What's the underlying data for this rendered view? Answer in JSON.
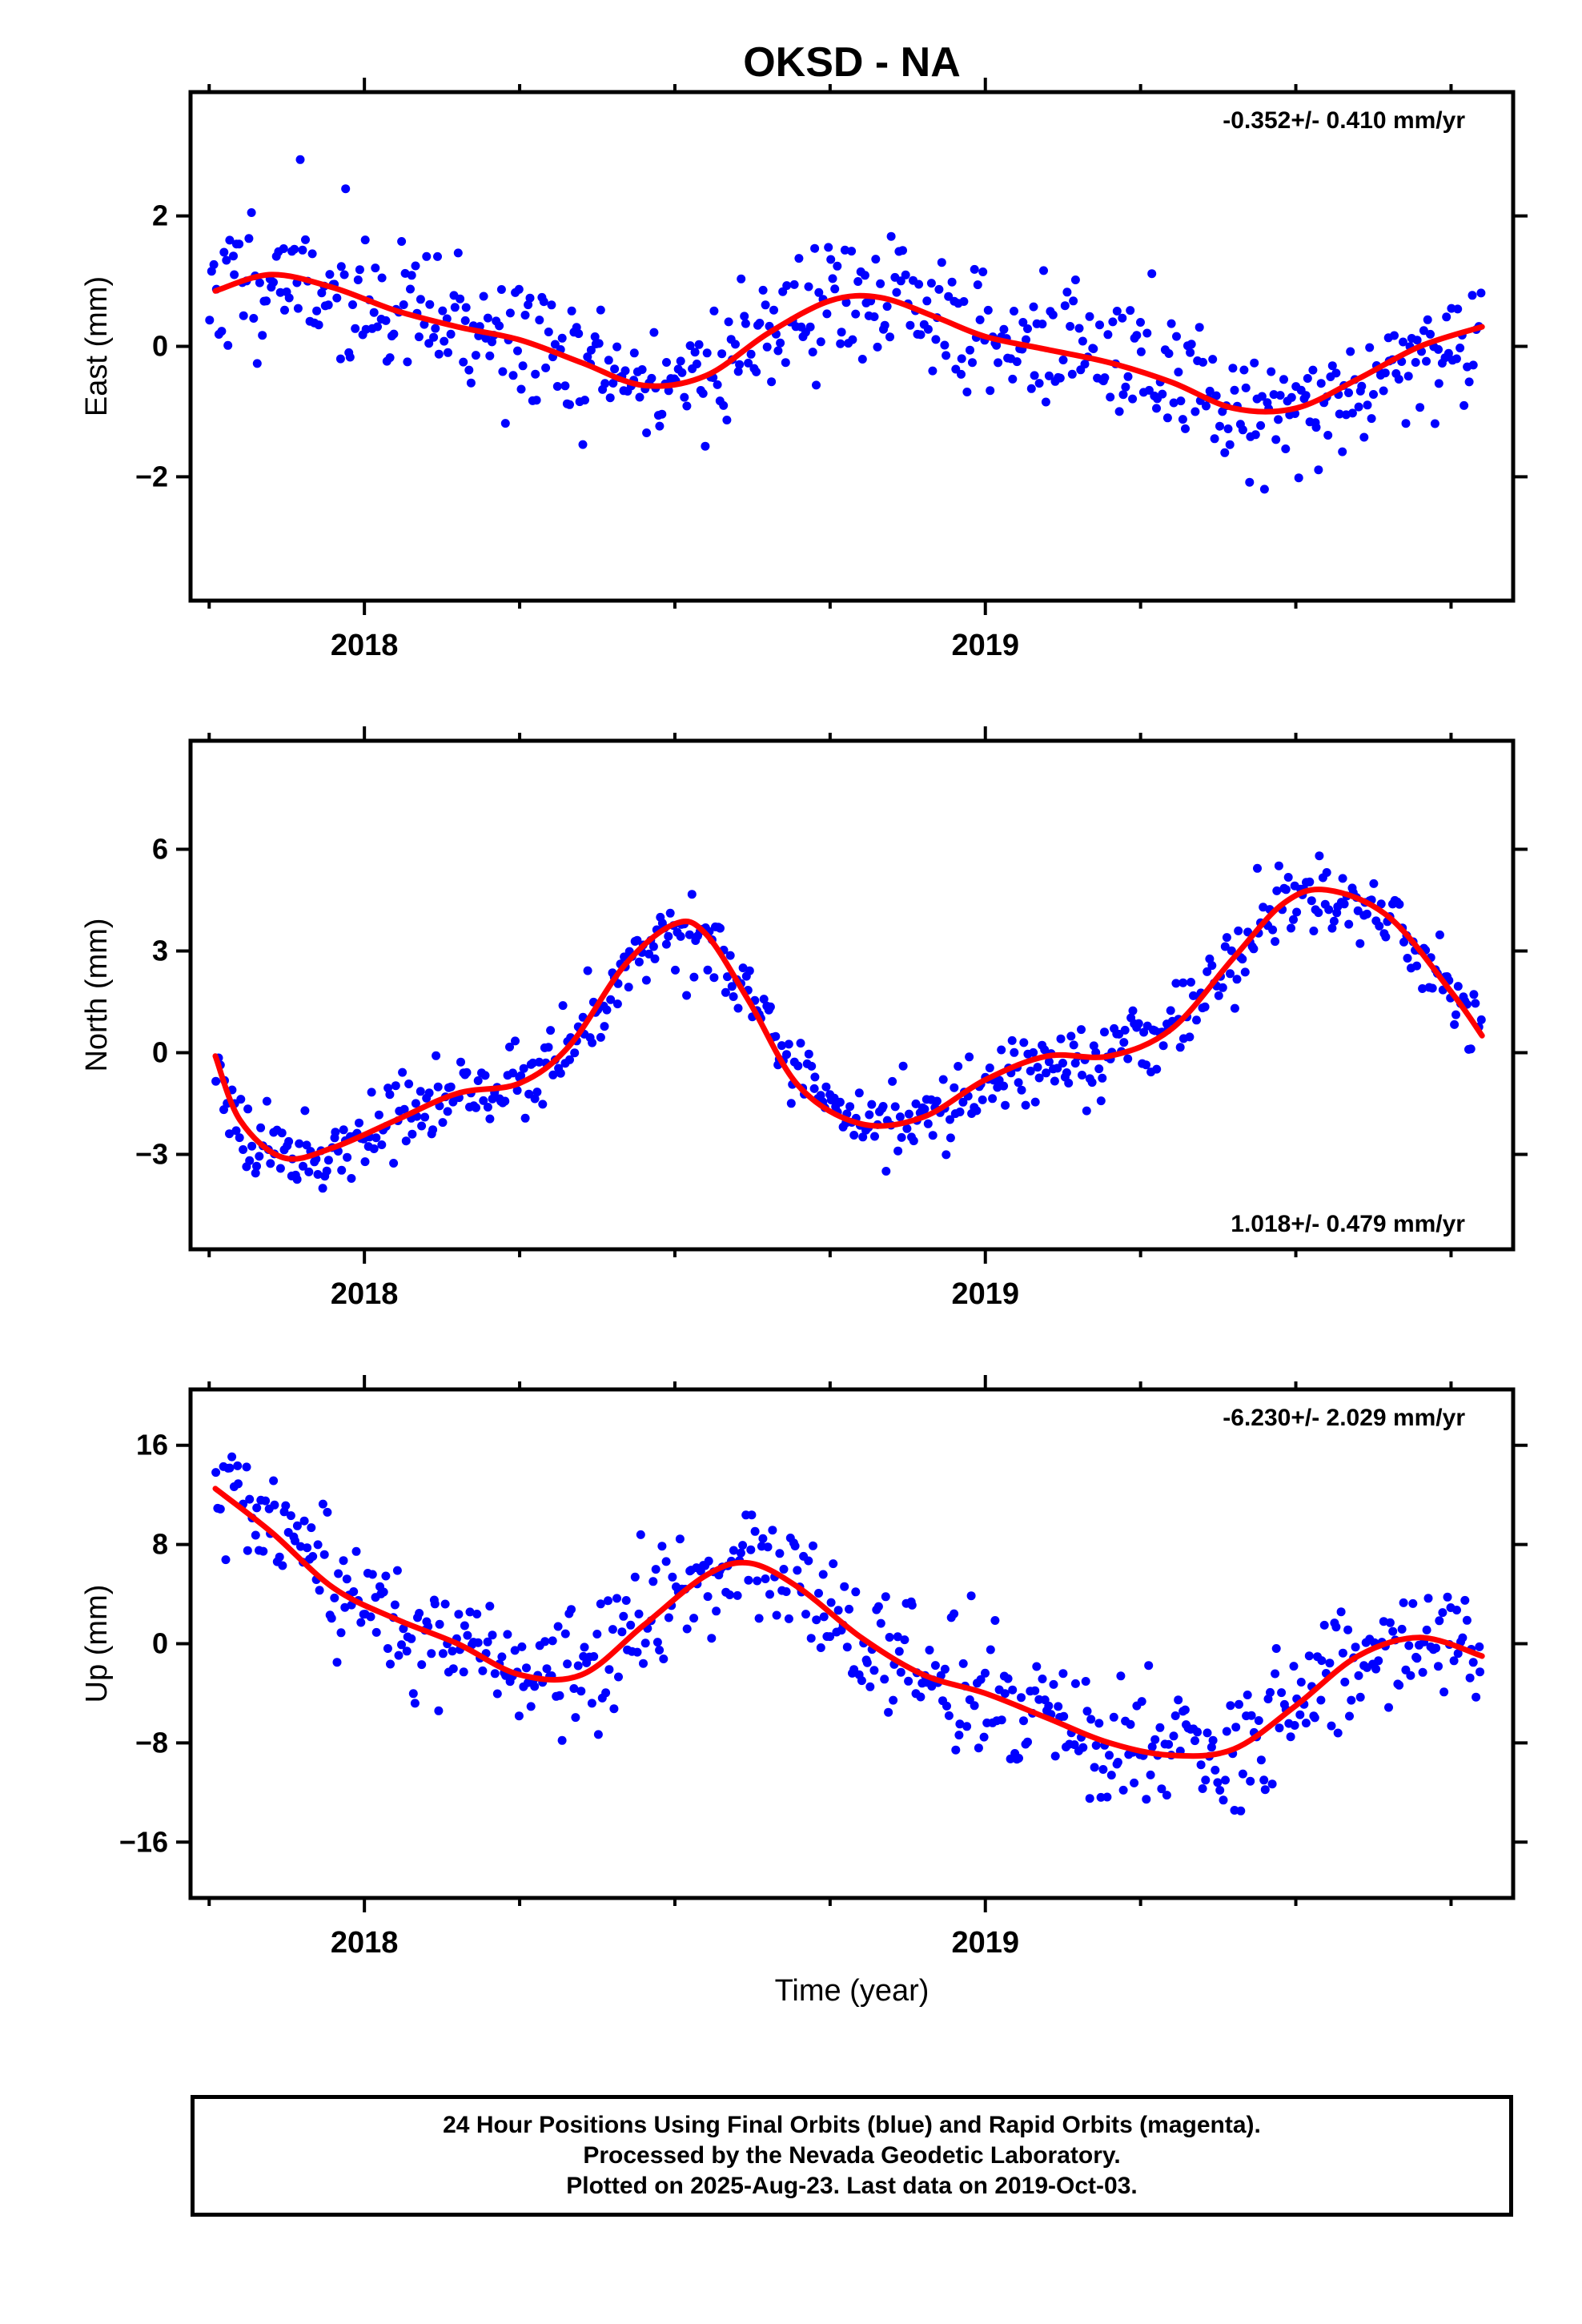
{
  "title": "OKSD - NA",
  "xlabel": "Time (year)",
  "colors": {
    "final_orbits": "#0000ff",
    "fit": "#ff0000",
    "axes": "#000000"
  },
  "chart_data": [
    {
      "type": "scatter",
      "ylabel": "East (mm)",
      "rate_label": "-0.352+/- 0.410 mm/yr",
      "xlim": [
        2017.72,
        2019.85
      ],
      "ylim": [
        -3.9,
        3.9
      ],
      "yticks": [
        -2,
        0,
        2
      ],
      "ytick_labels": [
        "−2",
        "0",
        "2"
      ],
      "xticks": [
        2018,
        2019
      ],
      "xtick_labels": [
        "2018",
        "2019"
      ],
      "fit": {
        "x": [
          2017.76,
          2017.85,
          2017.95,
          2018.05,
          2018.15,
          2018.25,
          2018.35,
          2018.45,
          2018.55,
          2018.65,
          2018.75,
          2018.83,
          2018.92,
          2019.0,
          2019.1,
          2019.2,
          2019.3,
          2019.4,
          2019.5,
          2019.6,
          2019.7,
          2019.8
        ],
        "y": [
          0.85,
          1.1,
          0.9,
          0.55,
          0.3,
          0.1,
          -0.25,
          -0.6,
          -0.45,
          0.2,
          0.7,
          0.75,
          0.45,
          0.15,
          -0.05,
          -0.25,
          -0.55,
          -0.95,
          -0.95,
          -0.5,
          0.0,
          0.3
        ]
      },
      "series": {
        "name": "Final Orbits",
        "anchors_x": [
          2017.75,
          2017.85,
          2017.95,
          2018.05,
          2018.15,
          2018.25,
          2018.35,
          2018.45,
          2018.55,
          2018.65,
          2018.75,
          2018.85,
          2018.95,
          2019.05,
          2019.15,
          2019.25,
          2019.35,
          2019.45,
          2019.55,
          2019.65,
          2019.75,
          2019.8
        ],
        "anchors_y": [
          0.9,
          1.1,
          0.9,
          0.5,
          0.3,
          0.1,
          -0.3,
          -0.6,
          -0.4,
          0.3,
          0.7,
          0.7,
          0.4,
          0.1,
          -0.1,
          -0.3,
          -0.6,
          -1.0,
          -0.9,
          -0.4,
          0.1,
          0.3
        ],
        "spread": 0.95,
        "count": 560,
        "seed": 11
      }
    },
    {
      "type": "scatter",
      "ylabel": "North (mm)",
      "rate_label": "1.018+/- 0.479 mm/yr",
      "xlim": [
        2017.72,
        2019.85
      ],
      "ylim": [
        -5.8,
        9.2
      ],
      "yticks": [
        -3,
        0,
        3,
        6
      ],
      "ytick_labels": [
        "−3",
        "0",
        "3",
        "6"
      ],
      "xticks": [
        2018,
        2019
      ],
      "xtick_labels": [
        "2018",
        "2019"
      ],
      "fit": {
        "x": [
          2017.76,
          2017.8,
          2017.87,
          2017.95,
          2018.05,
          2018.15,
          2018.25,
          2018.33,
          2018.42,
          2018.5,
          2018.55,
          2018.62,
          2018.7,
          2018.8,
          2018.9,
          2019.0,
          2019.1,
          2019.2,
          2019.3,
          2019.4,
          2019.48,
          2019.55,
          2019.65,
          2019.75,
          2019.8
        ],
        "y": [
          -0.1,
          -2.0,
          -3.1,
          -2.8,
          -2.0,
          -1.2,
          -0.9,
          0.2,
          2.6,
          3.8,
          3.5,
          1.5,
          -1.0,
          -2.1,
          -1.9,
          -0.8,
          -0.1,
          -0.1,
          0.7,
          2.8,
          4.4,
          4.8,
          4.0,
          1.8,
          0.5
        ]
      },
      "series": {
        "name": "Final Orbits",
        "anchors_x": [
          2017.76,
          2017.8,
          2017.87,
          2017.95,
          2018.05,
          2018.15,
          2018.25,
          2018.33,
          2018.42,
          2018.5,
          2018.55,
          2018.62,
          2018.7,
          2018.8,
          2018.9,
          2019.0,
          2019.1,
          2019.2,
          2019.3,
          2019.4,
          2019.48,
          2019.55,
          2019.65,
          2019.75,
          2019.8
        ],
        "anchors_y": [
          -0.1,
          -2.0,
          -3.1,
          -2.8,
          -2.0,
          -1.2,
          -0.9,
          0.2,
          2.6,
          3.8,
          3.5,
          1.5,
          -1.0,
          -2.1,
          -1.9,
          -0.8,
          -0.1,
          -0.1,
          0.7,
          2.8,
          4.4,
          4.8,
          4.0,
          1.8,
          0.5
        ],
        "spread": 1.0,
        "count": 560,
        "seed": 23
      }
    },
    {
      "type": "scatter",
      "ylabel": "Up (mm)",
      "rate_label": "-6.230+/- 2.029 mm/yr",
      "xlim": [
        2017.72,
        2019.85
      ],
      "ylim": [
        -20.5,
        20.5
      ],
      "yticks": [
        -16,
        -8,
        0,
        8,
        16
      ],
      "ytick_labels": [
        "−16",
        "−8",
        "0",
        "8",
        "16"
      ],
      "xticks": [
        2018,
        2019
      ],
      "xtick_labels": [
        "2018",
        "2019"
      ],
      "fit": {
        "x": [
          2017.76,
          2017.85,
          2017.95,
          2018.05,
          2018.15,
          2018.25,
          2018.35,
          2018.45,
          2018.55,
          2018.62,
          2018.7,
          2018.8,
          2018.9,
          2019.0,
          2019.1,
          2019.2,
          2019.3,
          2019.4,
          2019.5,
          2019.6,
          2019.7,
          2019.8
        ],
        "y": [
          12.5,
          9.0,
          4.5,
          2.0,
          0.0,
          -2.5,
          -2.5,
          1.5,
          5.5,
          6.5,
          4.5,
          0.5,
          -2.5,
          -4.0,
          -6.0,
          -8.0,
          -9.0,
          -8.5,
          -5.0,
          -1.0,
          0.5,
          -1.0
        ]
      },
      "series": {
        "name": "Final Orbits",
        "anchors_x": [
          2017.76,
          2017.85,
          2017.95,
          2018.05,
          2018.15,
          2018.25,
          2018.35,
          2018.45,
          2018.55,
          2018.62,
          2018.7,
          2018.8,
          2018.9,
          2019.0,
          2019.1,
          2019.2,
          2019.3,
          2019.4,
          2019.5,
          2019.6,
          2019.7,
          2019.8
        ],
        "anchors_y": [
          12.5,
          9.0,
          4.5,
          2.0,
          0.0,
          -2.5,
          -2.5,
          1.5,
          5.5,
          6.5,
          4.5,
          0.5,
          -2.5,
          -4.0,
          -6.0,
          -8.0,
          -9.0,
          -8.5,
          -5.0,
          -1.0,
          0.5,
          -1.0
        ],
        "spread": 4.5,
        "count": 560,
        "seed": 37
      }
    }
  ],
  "footer": {
    "line1": "24 Hour Positions Using Final Orbits (blue) and Rapid Orbits (magenta).",
    "line2": "Processed by the Nevada Geodetic Laboratory.",
    "line3": "Plotted on 2025-Aug-23. Last data on 2019-Oct-03."
  }
}
